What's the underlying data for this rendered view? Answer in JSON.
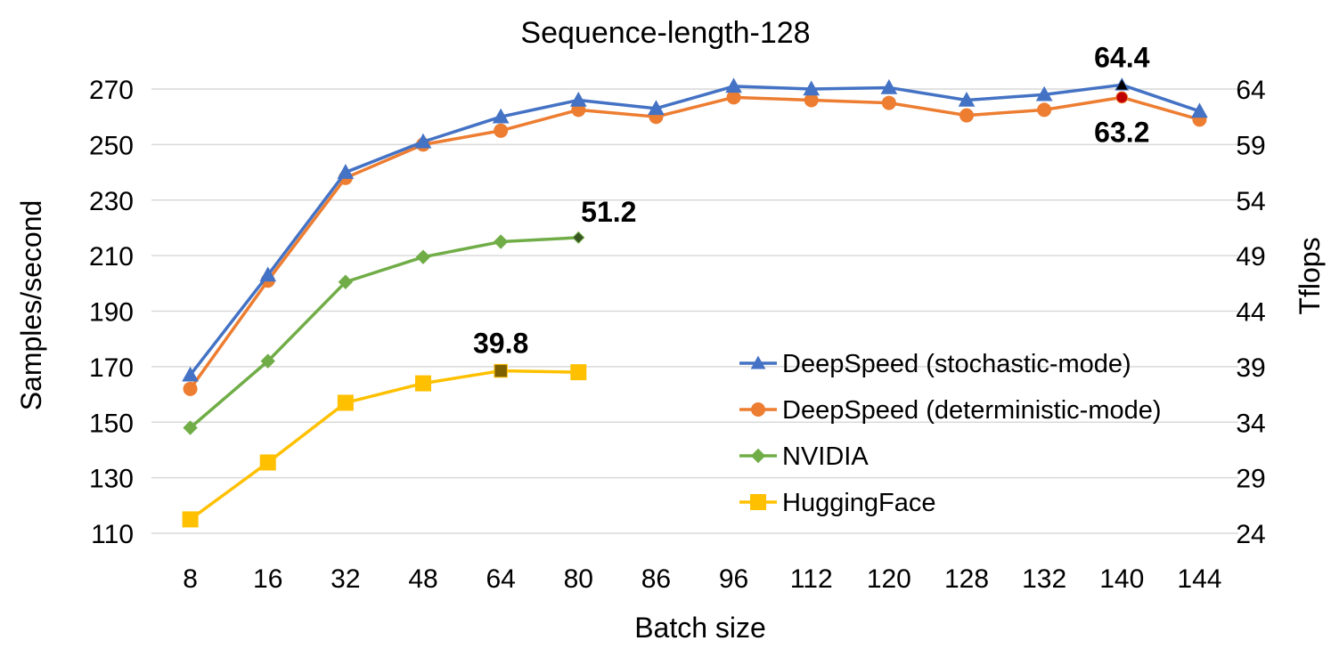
{
  "chart_data": {
    "type": "line",
    "title": "Sequence-length-128",
    "xlabel": "Batch size",
    "ylabel": "Samples/second",
    "y2label": "Tflops",
    "categories": [
      "8",
      "16",
      "32",
      "48",
      "64",
      "80",
      "86",
      "96",
      "112",
      "120",
      "128",
      "132",
      "140",
      "144"
    ],
    "ylim": [
      110,
      270
    ],
    "yticks": [
      "110",
      "130",
      "150",
      "170",
      "190",
      "210",
      "230",
      "250",
      "270"
    ],
    "y2ticks": [
      "24",
      "29",
      "34",
      "39",
      "44",
      "49",
      "54",
      "59",
      "64"
    ],
    "grid": true,
    "legend_position": "right-center",
    "series": [
      {
        "name": "DeepSpeed (stochastic-mode)",
        "color": "#4472C4",
        "marker": "triangle",
        "values": [
          167,
          203,
          240,
          251,
          260,
          266,
          263,
          271,
          270,
          270.5,
          266,
          268,
          271.5,
          262
        ]
      },
      {
        "name": "DeepSpeed (deterministic-mode)",
        "color": "#ED7D31",
        "marker": "circle",
        "values": [
          162,
          201,
          238,
          250,
          255,
          262.5,
          260,
          267,
          266,
          265,
          260.5,
          262.5,
          267,
          259
        ]
      },
      {
        "name": "NVIDIA",
        "color": "#70AD47",
        "marker": "diamond",
        "values": [
          148,
          172,
          200.5,
          209.5,
          215,
          216.5,
          null,
          null,
          null,
          null,
          null,
          null,
          null,
          null
        ]
      },
      {
        "name": "HuggingFace",
        "color": "#FFC000",
        "marker": "square",
        "values": [
          115,
          135.5,
          157,
          164,
          168.5,
          168,
          null,
          null,
          null,
          null,
          null,
          null,
          null,
          null
        ]
      }
    ],
    "annotations": [
      {
        "text": "64.4",
        "color": "#2F5597",
        "series": 0,
        "index": 12,
        "where": "above"
      },
      {
        "text": "63.2",
        "color": "#ED7D31",
        "series": 1,
        "index": 12,
        "where": "below"
      },
      {
        "text": "51.2",
        "color": "#70AD47",
        "series": 2,
        "index": 5,
        "where": "above-right"
      },
      {
        "text": "39.8",
        "color": "#FFC000",
        "series": 3,
        "index": 4,
        "where": "above"
      }
    ],
    "highlight_markers": [
      {
        "series": 0,
        "index": 12,
        "fill": "#000000"
      },
      {
        "series": 1,
        "index": 12,
        "fill": "#C00000"
      },
      {
        "series": 2,
        "index": 5,
        "fill": "#375623"
      },
      {
        "series": 3,
        "index": 4,
        "fill": "#7F6000"
      }
    ]
  }
}
